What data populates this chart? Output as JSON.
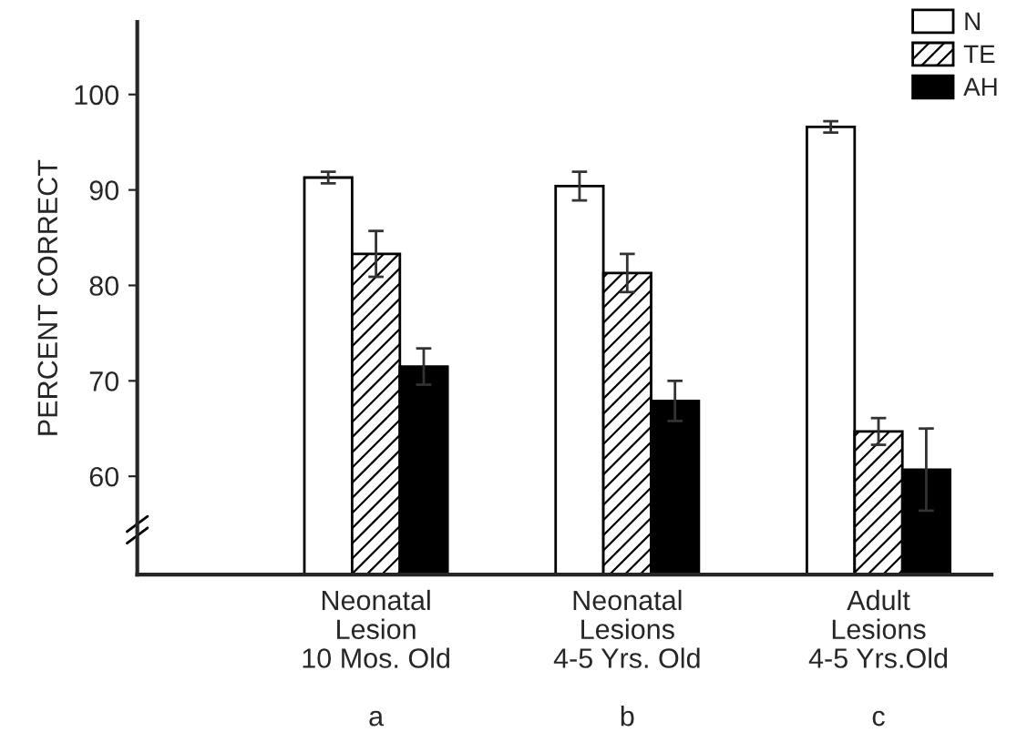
{
  "chart_data": {
    "type": "bar",
    "ylabel": "PERCENT CORRECT",
    "categories": [
      "Neonatal\nLesion\n10 Mos. Old\n\na",
      "Neonatal\nLesions\n4-5 Yrs. Old\n\nb",
      "Adult\nLesions\n4-5 Yrs.Old\n\nc"
    ],
    "series": [
      {
        "name": "N",
        "color": "#ffffff",
        "values": [
          91.3,
          90.4,
          96.6
        ],
        "errors": [
          0.6,
          1.5,
          0.6
        ]
      },
      {
        "name": "TE",
        "color": "#000000",
        "values": [
          83.3,
          81.3,
          64.7
        ],
        "errors": [
          2.4,
          2.0,
          1.4
        ]
      },
      {
        "name": "AH",
        "color": "#000000",
        "values": [
          71.5,
          67.9,
          60.7
        ],
        "errors": [
          1.9,
          2.1,
          4.3
        ]
      }
    ],
    "ylim": [
      49.7,
      107.6
    ],
    "yticks": [
      60,
      70,
      80,
      90,
      100
    ],
    "grid": false,
    "legend": "top right"
  }
}
